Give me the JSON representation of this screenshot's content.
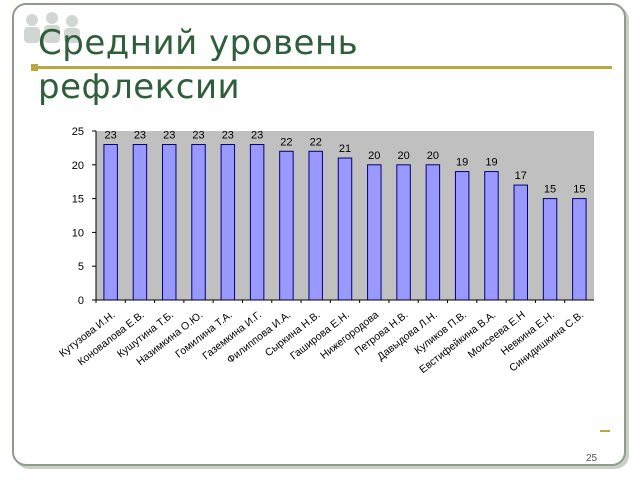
{
  "slide": {
    "title_line1": "Средний уровень",
    "title_line2": "рефлексии",
    "page_number": "25"
  },
  "colors": {
    "bar_fill": "#9999ff",
    "bar_stroke": "#000080",
    "plot_bg": "#c0c0c0",
    "title": "#2f5f3a",
    "accent_rule": "#b8a93e"
  },
  "chart_data": {
    "type": "bar",
    "categories": [
      "Кутузова И.Н.",
      "Коновалова Е.В.",
      "Кушутина Т.Б.",
      "Назимкина О.Ю.",
      "Гомилина Т.А.",
      "Газемкина И.Г.",
      "Филиппова И.А.",
      "Сыркина Н.В.",
      "Гаширова Е.Н.",
      "Нижегородова",
      "Петрова Н.В.",
      "Давыдова Л.Н.",
      "Куликов П.В.",
      "Евстифейкина В.А.",
      "Моисеева Е.Н",
      "Невкина Е.Н.",
      "Синидишкина С.В."
    ],
    "values": [
      23,
      23,
      23,
      23,
      23,
      23,
      22,
      22,
      21,
      20,
      20,
      20,
      19,
      19,
      17,
      15,
      15
    ],
    "yticks": [
      0,
      5,
      10,
      15,
      20,
      25
    ],
    "ylim": [
      0,
      25
    ],
    "grid": false,
    "legend": "none"
  }
}
